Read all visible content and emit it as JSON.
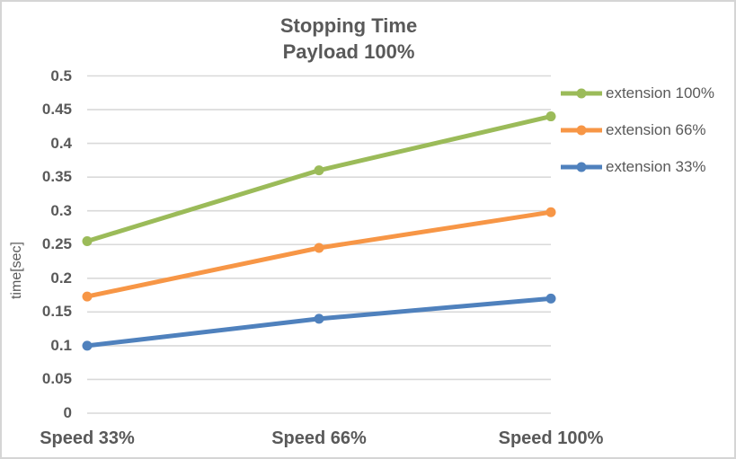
{
  "chart_data": {
    "type": "line",
    "title": "Stopping Time",
    "subtitle": "Payload 100%",
    "categories": [
      "Speed 33%",
      "Speed 66%",
      "Speed 100%"
    ],
    "series": [
      {
        "name": "extension 100%",
        "color": "#9BBB59",
        "values": [
          0.255,
          0.36,
          0.44
        ]
      },
      {
        "name": "extension 66%",
        "color": "#F79646",
        "values": [
          0.173,
          0.245,
          0.298
        ]
      },
      {
        "name": "extension 33%",
        "color": "#4F81BD",
        "values": [
          0.1,
          0.14,
          0.17
        ]
      }
    ],
    "xlabel": "",
    "ylabel": "time[sec]",
    "ylim": [
      0,
      0.5
    ],
    "ytick_labels": [
      "0",
      "0.05",
      "0.1",
      "0.15",
      "0.2",
      "0.25",
      "0.3",
      "0.35",
      "0.4",
      "0.45",
      "0.5"
    ],
    "grid": true,
    "legend_position": "right",
    "marker": "circle"
  },
  "colors": {
    "text": "#595959",
    "gridline": "#D9D9D9",
    "chart_border": "#D5D5D5",
    "background": "#FFFFFF"
  }
}
